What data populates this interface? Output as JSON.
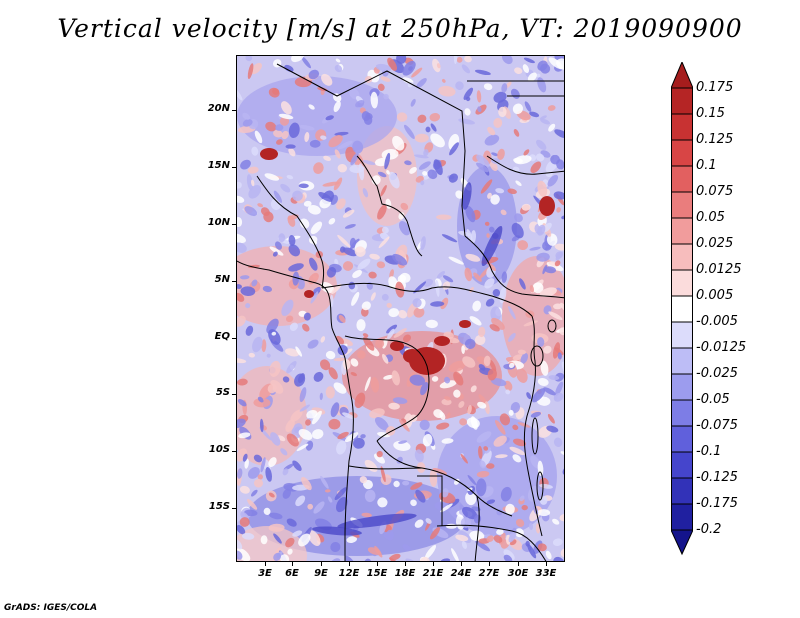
{
  "title": "Vertical velocity [m/s] at 250hPa, VT: 2019090900",
  "footer": "GrADS: IGES/COLA",
  "map": {
    "lat_labels": [
      "20N",
      "15N",
      "10N",
      "5N",
      "EQ",
      "5S",
      "10S",
      "15S"
    ],
    "lon_labels": [
      "3E",
      "6E",
      "9E",
      "12E",
      "15E",
      "18E",
      "21E",
      "24E",
      "27E",
      "30E",
      "33E"
    ],
    "field_description": "Vertical velocity at 250hPa over Central Africa"
  },
  "colorbar": {
    "labels": [
      "0.175",
      "0.15",
      "0.125",
      "0.1",
      "0.075",
      "0.05",
      "0.025",
      "0.0125",
      "0.005",
      "-0.005",
      "-0.0125",
      "-0.025",
      "-0.05",
      "-0.075",
      "-0.1",
      "-0.125",
      "-0.175",
      "-0.2"
    ],
    "colors": [
      "#a51d1d",
      "#b52525",
      "#c83232",
      "#d84545",
      "#e26060",
      "#ea7d7d",
      "#f19c9c",
      "#f7bdbd",
      "#fbdcdc",
      "#ffffff",
      "#dcdcfb",
      "#bdbdf6",
      "#9c9cee",
      "#7d7de6",
      "#6060dc",
      "#4545cc",
      "#3232b8",
      "#2020a0",
      "#14148c"
    ]
  }
}
